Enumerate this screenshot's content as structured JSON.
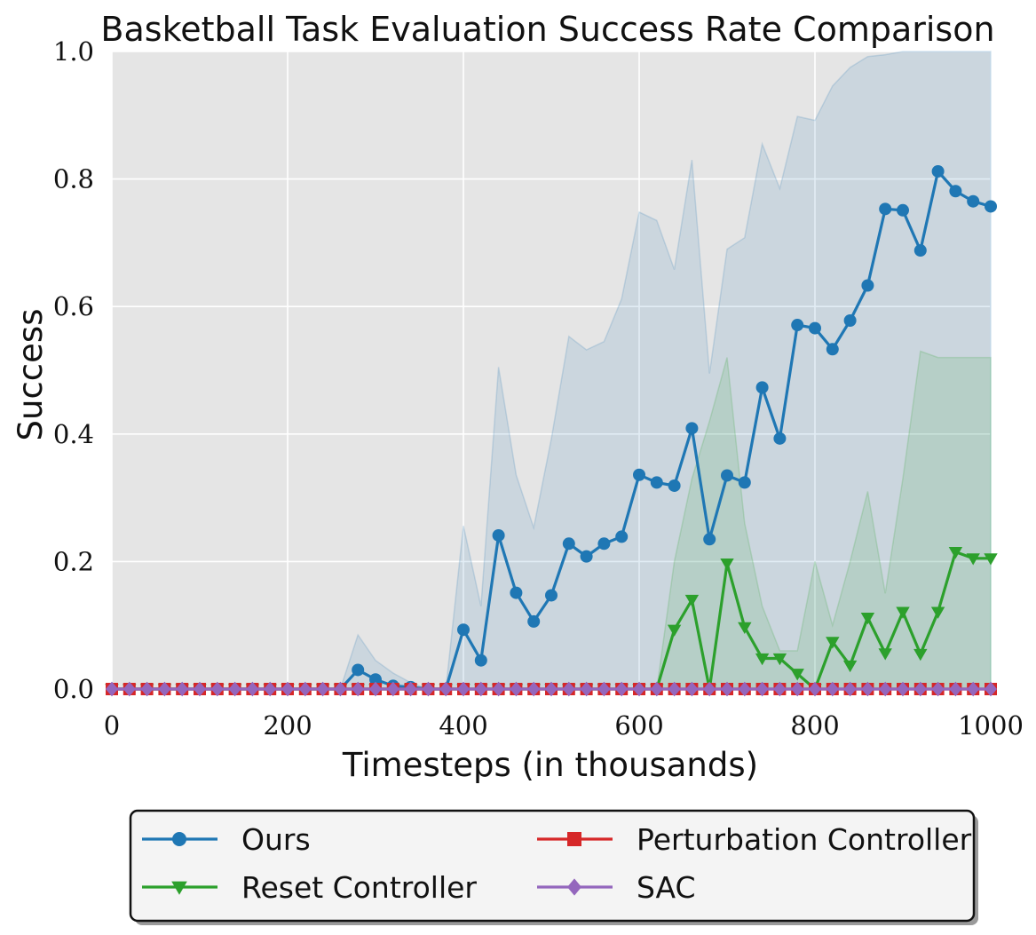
{
  "chart_data": {
    "type": "line",
    "title": "Basketball Task Evaluation Success Rate Comparison",
    "xlabel": "Timesteps (in thousands)",
    "ylabel": "Success",
    "xlim": [
      0,
      1000
    ],
    "ylim": [
      0,
      1.0
    ],
    "xticks": [
      0,
      200,
      400,
      600,
      800,
      1000
    ],
    "yticks": [
      0.0,
      0.2,
      0.4,
      0.6,
      0.8,
      1.0
    ],
    "ytick_labels": [
      "0.0",
      "0.2",
      "0.4",
      "0.6",
      "0.8",
      "1.0"
    ],
    "grid": true,
    "legend_position": "bottom, below plot",
    "series": [
      {
        "name": "Ours",
        "color": "#1f77b4",
        "marker": "circle",
        "x": [
          0,
          20,
          40,
          60,
          80,
          100,
          120,
          140,
          160,
          180,
          200,
          220,
          240,
          260,
          280,
          300,
          320,
          340,
          360,
          380,
          400,
          420,
          440,
          460,
          480,
          500,
          520,
          540,
          560,
          580,
          600,
          620,
          640,
          660,
          680,
          700,
          720,
          740,
          760,
          780,
          800,
          820,
          840,
          860,
          880,
          900,
          920,
          940,
          960,
          980,
          1000
        ],
        "y": [
          0,
          0,
          0,
          0,
          0,
          0,
          0,
          0,
          0,
          0,
          0,
          0,
          0,
          0,
          0.03,
          0.015,
          0.005,
          0.003,
          0,
          0,
          0.093,
          0.045,
          0.241,
          0.151,
          0.106,
          0.147,
          0.228,
          0.208,
          0.228,
          0.239,
          0.336,
          0.324,
          0.319,
          0.409,
          0.235,
          0.335,
          0.324,
          0.473,
          0.393,
          0.571,
          0.566,
          0.533,
          0.578,
          0.633,
          0.753,
          0.751,
          0.688,
          0.812,
          0.781,
          0.765,
          0.757
        ],
        "band_upper": [
          0,
          0,
          0,
          0,
          0,
          0,
          0,
          0,
          0,
          0,
          0,
          0,
          0,
          0,
          0.085,
          0.045,
          0.025,
          0.01,
          0,
          0,
          0.256,
          0.13,
          0.505,
          0.336,
          0.253,
          0.392,
          0.553,
          0.532,
          0.545,
          0.612,
          0.748,
          0.735,
          0.658,
          0.83,
          0.495,
          0.69,
          0.708,
          0.855,
          0.785,
          0.898,
          0.892,
          0.946,
          0.975,
          0.992,
          0.995,
          1.0,
          1.0,
          1.0,
          1.0,
          1.0,
          1.0
        ],
        "band_lower": [
          0,
          0,
          0,
          0,
          0,
          0,
          0,
          0,
          0,
          0,
          0,
          0,
          0,
          0,
          0,
          0,
          0,
          0,
          0,
          0,
          0,
          0,
          0,
          0,
          0,
          0,
          0,
          0,
          0,
          0,
          0,
          0,
          0,
          0,
          0,
          0,
          0,
          0,
          0,
          0,
          0,
          0,
          0,
          0,
          0,
          0,
          0,
          0,
          0,
          0,
          0
        ]
      },
      {
        "name": "Reset Controller",
        "color": "#2ca02c",
        "marker": "triangle-down",
        "x": [
          0,
          20,
          40,
          60,
          80,
          100,
          120,
          140,
          160,
          180,
          200,
          220,
          240,
          260,
          280,
          300,
          320,
          340,
          360,
          380,
          400,
          420,
          440,
          460,
          480,
          500,
          520,
          540,
          560,
          580,
          600,
          620,
          640,
          660,
          680,
          700,
          720,
          740,
          760,
          780,
          800,
          820,
          840,
          860,
          880,
          900,
          920,
          940,
          960,
          980,
          1000
        ],
        "y": [
          0,
          0,
          0,
          0,
          0,
          0,
          0,
          0,
          0,
          0,
          0,
          0,
          0,
          0,
          0,
          0,
          0,
          0,
          0,
          0,
          0,
          0,
          0,
          0,
          0,
          0,
          0,
          0,
          0,
          0,
          0,
          0,
          0.093,
          0.14,
          0.0,
          0.197,
          0.097,
          0.048,
          0.048,
          0.024,
          0.0,
          0.074,
          0.037,
          0.112,
          0.056,
          0.121,
          0.055,
          0.121,
          0.215,
          0.205,
          0.205
        ],
        "band_upper": [
          0,
          0,
          0,
          0,
          0,
          0,
          0,
          0,
          0,
          0,
          0,
          0,
          0,
          0,
          0,
          0,
          0,
          0,
          0,
          0,
          0,
          0,
          0,
          0,
          0,
          0,
          0,
          0,
          0,
          0,
          0,
          0,
          0.2,
          0.33,
          0.42,
          0.52,
          0.26,
          0.13,
          0.06,
          0.06,
          0.2,
          0.1,
          0.2,
          0.31,
          0.15,
          0.33,
          0.53,
          0.52,
          0.52,
          0.52,
          0.52
        ],
        "band_lower": [
          0,
          0,
          0,
          0,
          0,
          0,
          0,
          0,
          0,
          0,
          0,
          0,
          0,
          0,
          0,
          0,
          0,
          0,
          0,
          0,
          0,
          0,
          0,
          0,
          0,
          0,
          0,
          0,
          0,
          0,
          0,
          0,
          0,
          0,
          0,
          0,
          0,
          0,
          0,
          0,
          0,
          0,
          0,
          0,
          0,
          0,
          0,
          0,
          0,
          0,
          0
        ]
      },
      {
        "name": "Perturbation Controller",
        "color": "#d62728",
        "marker": "square",
        "x": [
          0,
          20,
          40,
          60,
          80,
          100,
          120,
          140,
          160,
          180,
          200,
          220,
          240,
          260,
          280,
          300,
          320,
          340,
          360,
          380,
          400,
          420,
          440,
          460,
          480,
          500,
          520,
          540,
          560,
          580,
          600,
          620,
          640,
          660,
          680,
          700,
          720,
          740,
          760,
          780,
          800,
          820,
          840,
          860,
          880,
          900,
          920,
          940,
          960,
          980,
          1000
        ],
        "y": [
          0,
          0,
          0,
          0,
          0,
          0,
          0,
          0,
          0,
          0,
          0,
          0,
          0,
          0,
          0,
          0,
          0,
          0,
          0,
          0,
          0,
          0,
          0,
          0,
          0,
          0,
          0,
          0,
          0,
          0,
          0,
          0,
          0,
          0,
          0,
          0,
          0,
          0,
          0,
          0,
          0,
          0,
          0,
          0,
          0,
          0,
          0,
          0,
          0,
          0,
          0
        ]
      },
      {
        "name": "SAC",
        "color": "#9467bd",
        "marker": "diamond",
        "x": [
          0,
          20,
          40,
          60,
          80,
          100,
          120,
          140,
          160,
          180,
          200,
          220,
          240,
          260,
          280,
          300,
          320,
          340,
          360,
          380,
          400,
          420,
          440,
          460,
          480,
          500,
          520,
          540,
          560,
          580,
          600,
          620,
          640,
          660,
          680,
          700,
          720,
          740,
          760,
          780,
          800,
          820,
          840,
          860,
          880,
          900,
          920,
          940,
          960,
          980,
          1000
        ],
        "y": [
          0,
          0,
          0,
          0,
          0,
          0,
          0,
          0,
          0,
          0,
          0,
          0,
          0,
          0,
          0,
          0,
          0,
          0,
          0,
          0,
          0,
          0,
          0,
          0,
          0,
          0,
          0,
          0,
          0,
          0,
          0,
          0,
          0,
          0,
          0,
          0,
          0,
          0,
          0,
          0,
          0,
          0,
          0,
          0,
          0,
          0,
          0,
          0,
          0,
          0,
          0
        ]
      }
    ]
  }
}
